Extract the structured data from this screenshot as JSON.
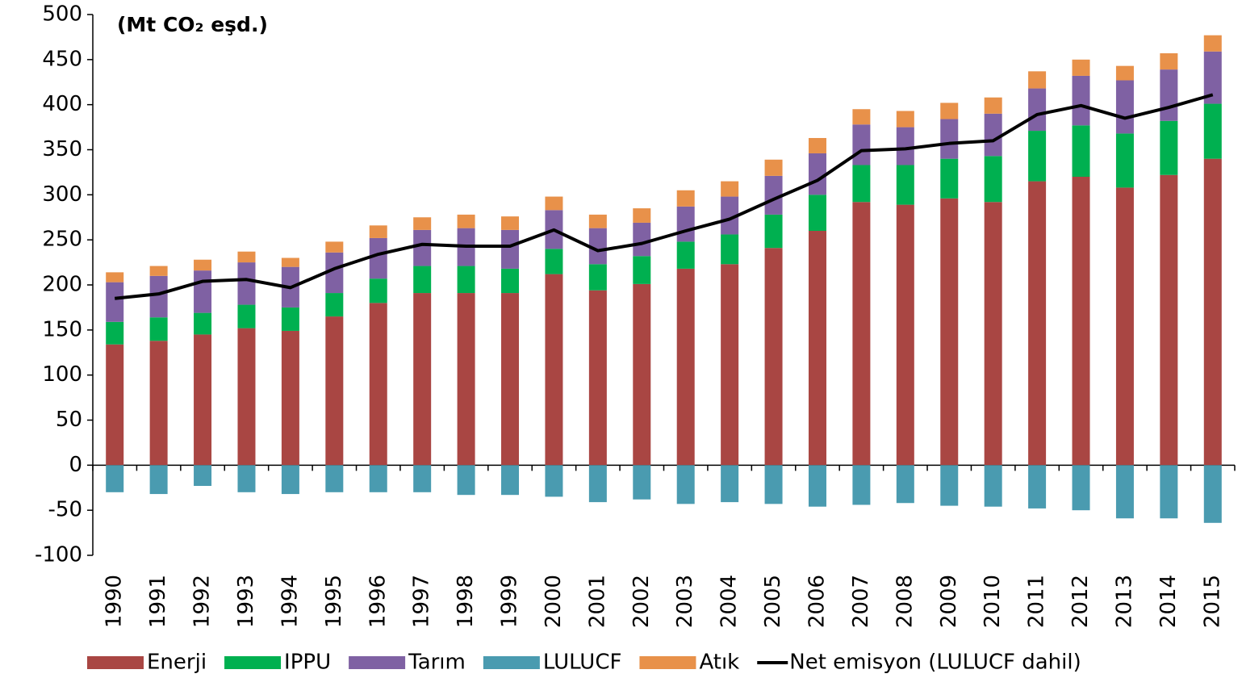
{
  "chart_data": {
    "type": "bar",
    "stacked": true,
    "title": "(Mt CO₂ eşd.)",
    "categories": [
      "1990",
      "1991",
      "1992",
      "1993",
      "1994",
      "1995",
      "1996",
      "1997",
      "1998",
      "1999",
      "2000",
      "2001",
      "2002",
      "2003",
      "2004",
      "2005",
      "2006",
      "2007",
      "2008",
      "2009",
      "2010",
      "2011",
      "2012",
      "2013",
      "2014",
      "2015"
    ],
    "series": [
      {
        "name": "Enerji",
        "color": "#a94643",
        "values": [
          134,
          138,
          145,
          152,
          149,
          165,
          180,
          191,
          191,
          191,
          212,
          194,
          201,
          218,
          223,
          241,
          260,
          292,
          289,
          296,
          292,
          315,
          320,
          308,
          322,
          340
        ]
      },
      {
        "name": "IPPU",
        "color": "#00b050",
        "values": [
          25,
          26,
          24,
          26,
          26,
          26,
          27,
          30,
          30,
          27,
          28,
          29,
          31,
          30,
          33,
          37,
          40,
          41,
          44,
          44,
          51,
          56,
          57,
          60,
          60,
          61
        ]
      },
      {
        "name": "Tarım",
        "color": "#7f61a3",
        "values": [
          44,
          46,
          47,
          47,
          45,
          45,
          45,
          40,
          42,
          43,
          43,
          40,
          37,
          39,
          42,
          43,
          46,
          45,
          42,
          44,
          47,
          47,
          55,
          59,
          57,
          58
        ]
      },
      {
        "name": "LULUCF",
        "color": "#4a9bb0",
        "values": [
          -30,
          -32,
          -23,
          -30,
          -32,
          -30,
          -30,
          -30,
          -33,
          -33,
          -35,
          -41,
          -38,
          -43,
          -41,
          -43,
          -46,
          -44,
          -42,
          -45,
          -46,
          -48,
          -50,
          -59,
          -59,
          -64
        ]
      },
      {
        "name": "Atık",
        "color": "#e8914a",
        "values": [
          11,
          11,
          12,
          12,
          10,
          12,
          14,
          14,
          15,
          15,
          15,
          15,
          16,
          18,
          17,
          18,
          17,
          17,
          18,
          18,
          18,
          19,
          18,
          16,
          18,
          18
        ]
      },
      {
        "name": "Net emisyon (LULUCF dahil)",
        "type": "line",
        "color": "#000000",
        "values": [
          185,
          190,
          204,
          206,
          197,
          218,
          234,
          245,
          243,
          243,
          261,
          238,
          246,
          260,
          273,
          295,
          316,
          349,
          351,
          357,
          360,
          389,
          399,
          385,
          397,
          411
        ]
      }
    ],
    "ylim": [
      -100,
      500
    ],
    "yticks": [
      -100,
      -50,
      0,
      50,
      100,
      150,
      200,
      250,
      300,
      350,
      400,
      450,
      500
    ]
  }
}
